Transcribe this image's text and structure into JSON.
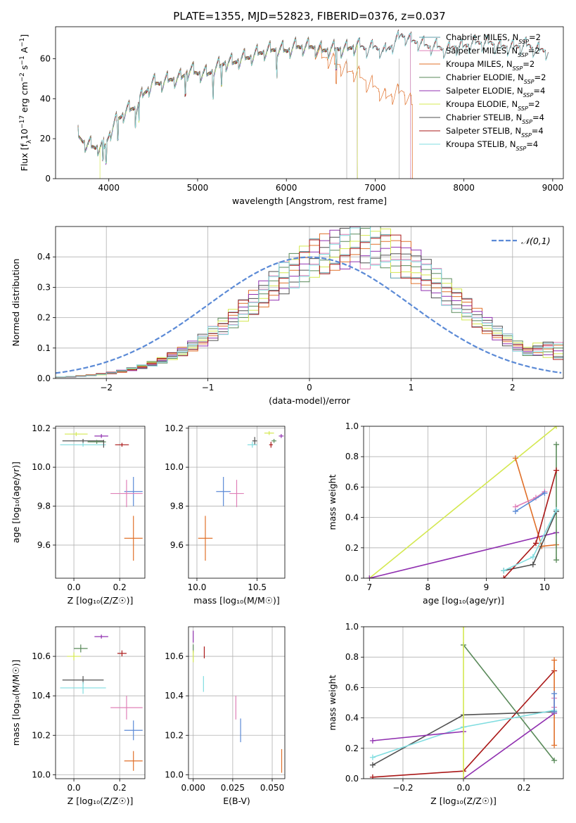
{
  "figure_title": "PLATE=1355, MJD=52823, FIBERID=0376, z=0.037",
  "colors": {
    "Chabrier MILES": "#5f9ea8",
    "Salpeter MILES": "#e080b8",
    "Kroupa MILES": "#e0702a",
    "Chabrier ELODIE": "#5a8a5a",
    "Salpeter ELODIE": "#9030b0",
    "Kroupa ELODIE": "#d4e850",
    "Chabrier STELIB": "#505050",
    "Salpeter STELIB": "#aa1818",
    "Kroupa STELIB": "#80dde0",
    "gauss": "#5b8ad6",
    "blue_point": "#5b8ad6"
  },
  "chart_data": [
    {
      "id": "spectrum",
      "type": "line",
      "xlabel": "wavelength [Angstrom, rest frame]",
      "ylabel": "Flux [f$_\\lambda$10$^{-17}$ erg cm$^{-2}$ s$^{-1}$ A$^{-1}$]",
      "ylabel_parts": [
        "Flux [f",
        "λ",
        "10",
        "−17",
        " erg cm",
        "−2",
        " s",
        "−1",
        " A",
        "−1",
        "]"
      ],
      "xlim": [
        3400,
        9120
      ],
      "ylim": [
        0,
        76
      ],
      "xticks": [
        "4000",
        "5000",
        "6000",
        "7000",
        "8000",
        "9000"
      ],
      "yticks": [
        "0",
        "20",
        "40",
        "60"
      ],
      "legend_position": "top-right",
      "legend": [
        {
          "name": "Chabrier MILES",
          "nssp": "2"
        },
        {
          "name": "Salpeter MILES",
          "nssp": "2"
        },
        {
          "name": "Kroupa MILES",
          "nssp": "2"
        },
        {
          "name": "Chabrier ELODIE",
          "nssp": "2"
        },
        {
          "name": "Salpeter ELODIE",
          "nssp": "4"
        },
        {
          "name": "Kroupa ELODIE",
          "nssp": "2"
        },
        {
          "name": "Chabrier STELIB",
          "nssp": "4"
        },
        {
          "name": "Salpeter STELIB",
          "nssp": "4"
        },
        {
          "name": "Kroupa STELIB",
          "nssp": "4"
        }
      ],
      "legend_label_prefix": ", N",
      "legend_label_sub": "SSP",
      "legend_label_eq": "=",
      "continuum": [
        [
          3650,
          22
        ],
        [
          3750,
          17
        ],
        [
          3850,
          16
        ],
        [
          3950,
          16
        ],
        [
          4000,
          22
        ],
        [
          4100,
          30
        ],
        [
          4200,
          34
        ],
        [
          4300,
          36
        ],
        [
          4400,
          43
        ],
        [
          4500,
          48
        ],
        [
          4600,
          48
        ],
        [
          4700,
          50
        ],
        [
          4800,
          50
        ],
        [
          4900,
          54
        ],
        [
          5000,
          53
        ],
        [
          5100,
          52
        ],
        [
          5200,
          55
        ],
        [
          5300,
          58
        ],
        [
          5400,
          58
        ],
        [
          5500,
          60
        ],
        [
          5600,
          61
        ],
        [
          5700,
          63
        ],
        [
          5800,
          64
        ],
        [
          5900,
          65
        ],
        [
          6000,
          64
        ],
        [
          6100,
          66
        ],
        [
          6200,
          66
        ],
        [
          6300,
          66
        ],
        [
          6400,
          64
        ],
        [
          6500,
          65
        ],
        [
          6600,
          65
        ],
        [
          6700,
          65
        ],
        [
          6800,
          67
        ],
        [
          6900,
          65
        ],
        [
          7000,
          66
        ],
        [
          7100,
          63
        ],
        [
          7200,
          67
        ],
        [
          7300,
          72
        ],
        [
          7400,
          69
        ],
        [
          7500,
          68
        ],
        [
          7600,
          66
        ],
        [
          7700,
          66
        ],
        [
          7800,
          64
        ],
        [
          7900,
          66
        ],
        [
          8000,
          66
        ],
        [
          8100,
          68
        ],
        [
          8200,
          68
        ],
        [
          8300,
          68
        ],
        [
          8400,
          66
        ],
        [
          8500,
          66
        ],
        [
          8600,
          66
        ],
        [
          8700,
          67
        ],
        [
          8800,
          65
        ],
        [
          8900,
          64
        ],
        [
          8950,
          64
        ]
      ],
      "series_ranges": {
        "Chabrier MILES": [
          3650,
          7400
        ],
        "Salpeter MILES": [
          3650,
          7400
        ],
        "Kroupa MILES": [
          3650,
          7420
        ],
        "Chabrier ELODIE": [
          3650,
          6800
        ],
        "Salpeter ELODIE": [
          3650,
          6800
        ],
        "Kroupa ELODIE": [
          3650,
          6800
        ],
        "Chabrier STELIB": [
          3650,
          8950
        ],
        "Salpeter STELIB": [
          3650,
          8950
        ],
        "Kroupa STELIB": [
          3650,
          8950
        ]
      },
      "dropouts": [
        [
          6800,
          0
        ],
        [
          7420,
          0
        ]
      ]
    },
    {
      "id": "residuals",
      "type": "histogram",
      "xlabel": "(data-model)/error",
      "ylabel": "Normed distribution",
      "xlim": [
        -2.5,
        2.5
      ],
      "ylim": [
        0,
        0.5
      ],
      "xticks": [
        "−2",
        "−1",
        "0",
        "1",
        "2"
      ],
      "yticks": [
        "0.0",
        "0.1",
        "0.2",
        "0.3",
        "0.4"
      ],
      "legend": [
        {
          "name": "𝒩(0,1)"
        }
      ],
      "legend_position": "top-right",
      "bin_width": 0.1,
      "gaussian": {
        "mean": 0,
        "sigma": 1
      }
    },
    {
      "id": "age-vs-z",
      "type": "errorbar",
      "xlabel": "Z [log₁₀(Z/Z☉)]",
      "ylabel": "age  [log₁₀(age/yr)]",
      "xlim": [
        -0.08,
        0.31
      ],
      "ylim": [
        9.43,
        10.21
      ],
      "xticks": [
        "0.0",
        "0.2"
      ],
      "xtick_values": [
        0.0,
        0.2
      ],
      "yticks": [
        "9.6",
        "9.8",
        "10.0",
        "10.2"
      ],
      "ytick_values": [
        9.6,
        9.8,
        10.0,
        10.2
      ],
      "points": [
        {
          "c": "Kroupa ELODIE",
          "x": 0.01,
          "xe": 0.05,
          "y": 10.17,
          "ye": 0.01
        },
        {
          "c": "Salpeter ELODIE",
          "x": 0.12,
          "xe": 0.03,
          "y": 10.16,
          "ye": 0.01
        },
        {
          "c": "Chabrier STELIB",
          "x": 0.04,
          "xe": 0.09,
          "y": 10.135,
          "ye": 0.01
        },
        {
          "c": "Chabrier ELODIE",
          "x": 0.1,
          "xe": 0.04,
          "y": 10.13,
          "ye": 0.01
        },
        {
          "c": "Kroupa STELIB",
          "x": 0.04,
          "xe": 0.1,
          "y": 10.115,
          "ye": 0.01
        },
        {
          "c": "Chabrier STELIB",
          "x": 0.13,
          "xe": 0.0,
          "y": 10.12,
          "ye": 0.02
        },
        {
          "c": "Salpeter STELIB",
          "x": 0.21,
          "xe": 0.03,
          "y": 10.115,
          "ye": 0.01
        },
        {
          "c": "gauss",
          "x": 0.26,
          "xe": 0.04,
          "y": 9.875,
          "ye": 0.075
        },
        {
          "c": "Salpeter MILES",
          "x": 0.23,
          "xe": 0.07,
          "y": 9.865,
          "ye": 0.07
        },
        {
          "c": "Kroupa MILES",
          "x": 0.26,
          "xe": 0.04,
          "y": 9.635,
          "ye": 0.115
        }
      ]
    },
    {
      "id": "age-vs-mass",
      "type": "errorbar",
      "xlabel": "mass [log₁₀(M/M☉)]",
      "ylabel": "",
      "xlim": [
        9.93,
        10.73
      ],
      "ylim": [
        9.43,
        10.21
      ],
      "xticks": [
        "10.0",
        "10.5"
      ],
      "xtick_values": [
        10.0,
        10.5
      ],
      "yticks": [
        "9.6",
        "9.8",
        "10.0",
        "10.2"
      ],
      "ytick_values": [
        9.6,
        9.8,
        10.0,
        10.2
      ],
      "points": [
        {
          "c": "Kroupa ELODIE",
          "x": 10.6,
          "xe": 0.04,
          "y": 10.175,
          "ye": 0.01
        },
        {
          "c": "Salpeter ELODIE",
          "x": 10.7,
          "xe": 0.02,
          "y": 10.16,
          "ye": 0.01
        },
        {
          "c": "Chabrier ELODIE",
          "x": 10.64,
          "xe": 0.02,
          "y": 10.135,
          "ye": 0.01
        },
        {
          "c": "Chabrier STELIB",
          "x": 10.48,
          "xe": 0.02,
          "y": 10.135,
          "ye": 0.02
        },
        {
          "c": "Kroupa STELIB",
          "x": 10.46,
          "xe": 0.04,
          "y": 10.115,
          "ye": 0.015
        },
        {
          "c": "Salpeter STELIB",
          "x": 10.615,
          "xe": 0.015,
          "y": 10.115,
          "ye": 0.015
        },
        {
          "c": "gauss",
          "x": 10.22,
          "xe": 0.06,
          "y": 9.875,
          "ye": 0.075
        },
        {
          "c": "Salpeter MILES",
          "x": 10.33,
          "xe": 0.06,
          "y": 9.865,
          "ye": 0.07
        },
        {
          "c": "Kroupa MILES",
          "x": 10.07,
          "xe": 0.06,
          "y": 9.635,
          "ye": 0.115
        }
      ]
    },
    {
      "id": "mass-weight-vs-age",
      "type": "line",
      "xlabel": "age  [log₁₀(age/yr)]",
      "ylabel": "mass weight",
      "xlim": [
        6.9,
        10.32
      ],
      "ylim": [
        0,
        1.0
      ],
      "xticks": [
        "7",
        "8",
        "9",
        "10"
      ],
      "xtick_values": [
        7,
        8,
        9,
        10
      ],
      "yticks": [
        "0.0",
        "0.2",
        "0.4",
        "0.6",
        "0.8",
        "1.0"
      ],
      "ytick_values": [
        0,
        0.2,
        0.4,
        0.6,
        0.8,
        1.0
      ],
      "series": [
        {
          "c": "Kroupa ELODIE",
          "points": [
            [
              7.0,
              0.0
            ],
            [
              10.2,
              1.0
            ]
          ]
        },
        {
          "c": "Salpeter ELODIE",
          "points": [
            [
              7.0,
              0.0
            ],
            [
              10.2,
              0.3
            ]
          ]
        },
        {
          "c": "Kroupa MILES",
          "points": [
            [
              9.5,
              0.79
            ],
            [
              9.95,
              0.21
            ],
            [
              10.2,
              0.22
            ]
          ]
        },
        {
          "c": "Salpeter MILES",
          "points": [
            [
              9.5,
              0.47
            ],
            [
              9.85,
              0.53
            ],
            [
              10.0,
              0.57
            ]
          ]
        },
        {
          "c": "gauss",
          "points": [
            [
              9.5,
              0.44
            ],
            [
              10.0,
              0.56
            ]
          ]
        },
        {
          "c": "Chabrier ELODIE",
          "points": [
            [
              10.2,
              0.88
            ],
            [
              10.2,
              0.12
            ]
          ]
        },
        {
          "c": "Chabrier STELIB",
          "points": [
            [
              9.3,
              0.05
            ],
            [
              9.8,
              0.09
            ],
            [
              10.2,
              0.44
            ]
          ]
        },
        {
          "c": "Salpeter STELIB",
          "points": [
            [
              9.3,
              0.0
            ],
            [
              9.85,
              0.23
            ],
            [
              10.2,
              0.71
            ]
          ]
        },
        {
          "c": "Kroupa STELIB",
          "points": [
            [
              9.3,
              0.05
            ],
            [
              9.8,
              0.14
            ],
            [
              10.2,
              0.45
            ]
          ]
        }
      ]
    },
    {
      "id": "mass-vs-z",
      "type": "errorbar",
      "xlabel": "Z [log₁₀(Z/Z☉)]",
      "ylabel": "mass [log₁₀(M/M☉)]",
      "xlim": [
        -0.08,
        0.31
      ],
      "ylim": [
        9.98,
        10.75
      ],
      "xticks": [
        "0.0",
        "0.2"
      ],
      "xtick_values": [
        0.0,
        0.2
      ],
      "yticks": [
        "10.0",
        "10.2",
        "10.4",
        "10.6"
      ],
      "ytick_values": [
        10.0,
        10.2,
        10.4,
        10.6
      ],
      "points": [
        {
          "c": "Salpeter ELODIE",
          "x": 0.12,
          "xe": 0.03,
          "y": 10.7,
          "ye": 0.01
        },
        {
          "c": "Chabrier ELODIE",
          "x": 0.03,
          "xe": 0.03,
          "y": 10.64,
          "ye": 0.02
        },
        {
          "c": "Salpeter STELIB",
          "x": 0.21,
          "xe": 0.02,
          "y": 10.615,
          "ye": 0.015
        },
        {
          "c": "Kroupa ELODIE",
          "x": 0.0,
          "xe": 0.03,
          "y": 10.6,
          "ye": 0.02
        },
        {
          "c": "Chabrier STELIB",
          "x": 0.04,
          "xe": 0.09,
          "y": 10.48,
          "ye": 0.02
        },
        {
          "c": "Kroupa STELIB",
          "x": 0.04,
          "xe": 0.1,
          "y": 10.44,
          "ye": 0.03
        },
        {
          "c": "Salpeter MILES",
          "x": 0.23,
          "xe": 0.07,
          "y": 10.34,
          "ye": 0.06
        },
        {
          "c": "gauss",
          "x": 0.26,
          "xe": 0.04,
          "y": 10.225,
          "ye": 0.05
        },
        {
          "c": "Kroupa MILES",
          "x": 0.26,
          "xe": 0.04,
          "y": 10.07,
          "ye": 0.05
        }
      ]
    },
    {
      "id": "mass-vs-ebv",
      "type": "errorbar",
      "xlabel": "E(B-V)",
      "ylabel": "",
      "xlim": [
        -0.003,
        0.058
      ],
      "ylim": [
        9.98,
        10.75
      ],
      "xticks": [
        "0.000",
        "0.025",
        "0.050"
      ],
      "xtick_values": [
        0.0,
        0.025,
        0.05
      ],
      "yticks": [
        "10.0",
        "10.2",
        "10.4",
        "10.6"
      ],
      "ytick_values": [
        10.0,
        10.2,
        10.4,
        10.6
      ],
      "points": [
        {
          "c": "Salpeter ELODIE",
          "x": 0.0,
          "xe": 0.0,
          "y": 10.7,
          "ye": 0.03
        },
        {
          "c": "Chabrier ELODIE",
          "x": 0.0,
          "xe": 0.0,
          "y": 10.64,
          "ye": 0.02
        },
        {
          "c": "Kroupa ELODIE",
          "x": 0.0,
          "xe": 0.0,
          "y": 10.6,
          "ye": 0.03
        },
        {
          "c": "Salpeter STELIB",
          "x": 0.007,
          "xe": 0.0,
          "y": 10.62,
          "ye": 0.03
        },
        {
          "c": "Kroupa STELIB",
          "x": 0.0065,
          "xe": 0.0,
          "y": 10.46,
          "ye": 0.04
        },
        {
          "c": "Salpeter MILES",
          "x": 0.027,
          "xe": 0.0,
          "y": 10.34,
          "ye": 0.06
        },
        {
          "c": "gauss",
          "x": 0.03,
          "xe": 0.0,
          "y": 10.225,
          "ye": 0.06
        },
        {
          "c": "Kroupa MILES",
          "x": 0.056,
          "xe": 0.0,
          "y": 10.07,
          "ye": 0.06
        }
      ]
    },
    {
      "id": "mass-weight-vs-z",
      "type": "line",
      "xlabel": "Z [log₁₀(Z/Z☉)]",
      "ylabel": "mass weight",
      "xlim": [
        -0.33,
        0.33
      ],
      "ylim": [
        0,
        1.0
      ],
      "xticks": [
        "−0.2",
        "0.0",
        "0.2"
      ],
      "xtick_values": [
        -0.2,
        0.0,
        0.2
      ],
      "yticks": [
        "0.0",
        "0.2",
        "0.4",
        "0.6",
        "0.8",
        "1.0"
      ],
      "ytick_values": [
        0,
        0.2,
        0.4,
        0.6,
        0.8,
        1.0
      ],
      "series": [
        {
          "c": "Chabrier ELODIE",
          "points": [
            [
              0.0,
              0.88
            ],
            [
              0.3,
              0.12
            ]
          ]
        },
        {
          "c": "Salpeter STELIB",
          "points": [
            [
              -0.3,
              0.01
            ],
            [
              0.0,
              0.05
            ],
            [
              0.3,
              0.71
            ]
          ]
        },
        {
          "c": "Chabrier STELIB",
          "points": [
            [
              -0.3,
              0.09
            ],
            [
              0.0,
              0.42
            ],
            [
              0.3,
              0.44
            ]
          ]
        },
        {
          "c": "Kroupa STELIB",
          "points": [
            [
              -0.3,
              0.14
            ],
            [
              0.0,
              0.34
            ],
            [
              0.3,
              0.45
            ]
          ]
        },
        {
          "c": "Salpeter ELODIE",
          "points": [
            [
              -0.3,
              0.25
            ],
            [
              0.0,
              0.31
            ]
          ]
        },
        {
          "c": "Salpeter ELODIE",
          "points": [
            [
              0.0,
              0.0
            ],
            [
              0.3,
              0.43
            ]
          ]
        },
        {
          "c": "Kroupa ELODIE",
          "points": [
            [
              0.0,
              0.0
            ],
            [
              0.0,
              1.0
            ]
          ]
        },
        {
          "c": "Kroupa MILES",
          "points": [
            [
              0.3,
              0.22
            ],
            [
              0.3,
              0.78
            ]
          ]
        },
        {
          "c": "Salpeter MILES",
          "points": [
            [
              0.3,
              0.47
            ],
            [
              0.3,
              0.53
            ]
          ]
        },
        {
          "c": "gauss",
          "points": [
            [
              0.3,
              0.44
            ],
            [
              0.3,
              0.56
            ]
          ]
        }
      ]
    }
  ]
}
